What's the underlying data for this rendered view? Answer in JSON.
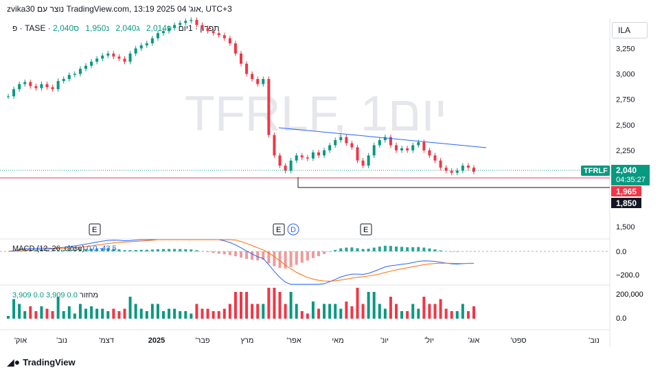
{
  "header": {
    "title_line": "zvika30 נוצר עם TradingView.com, 13:19 2025 אוג' 04, UTC+3"
  },
  "legend": {
    "symbol_line": "פ · TASE · תפרון · 1יום",
    "open": "פ2,014",
    "high": "ג2,040",
    "low": "נ1,950",
    "close": "ס2,040"
  },
  "currency": "ILA",
  "watermark": "TFRLF, 1יום",
  "price_axis": {
    "ticks": [
      "3,250",
      "3,000",
      "2,750",
      "2,500",
      "2,250",
      "1,500"
    ],
    "ticks_values": [
      3250,
      3000,
      2750,
      2500,
      2250,
      1500
    ],
    "symbol_tag": "TFRLF",
    "last_price": "2,040",
    "countdown": "04:35:27",
    "level_red": "1,965",
    "level_black": "1,850"
  },
  "macd": {
    "label": "MACD (12, 26, close)",
    "v1": "0.0",
    "v2": "-43.5",
    "axis": [
      "0.0",
      "−200.0"
    ]
  },
  "volume": {
    "label": "מחזור",
    "values_text": "0.0  3,909  0.0  3,909",
    "axis": [
      "200,000",
      "0.0"
    ]
  },
  "time_axis": {
    "labels": [
      "'אוק",
      "'נוב",
      "'דצמ",
      "2025",
      "'פבר",
      "מרץ",
      "'אפר",
      "מאי",
      "'יונ",
      "'יול",
      "'אוג",
      "'ספט",
      "'נוב"
    ]
  },
  "event_markers": [
    "E",
    "E",
    "D",
    "E"
  ],
  "footer": {
    "brand": "TradingView"
  },
  "colors": {
    "up": "#089981",
    "down": "#f23645",
    "trendline": "#2962ff",
    "macd": "#2962ff",
    "signal": "#ff6d00"
  },
  "chart_data": {
    "type": "candlestick",
    "x_range": [
      "2024-10",
      "2025-11"
    ],
    "ylim": [
      1400,
      3550
    ],
    "close_series": [
      2780,
      2850,
      2900,
      2920,
      2880,
      2860,
      2900,
      2870,
      2850,
      2930,
      2950,
      2990,
      3000,
      3050,
      3080,
      3120,
      3150,
      3180,
      3200,
      3170,
      3150,
      3120,
      3200,
      3250,
      3280,
      3300,
      3350,
      3400,
      3420,
      3450,
      3480,
      3500,
      3520,
      3530,
      3480,
      3450,
      3420,
      3400,
      3380,
      3350,
      3300,
      3200,
      3100,
      3000,
      2950,
      2900,
      2950,
      2400,
      2200,
      2100,
      2050,
      2150,
      2200,
      2180,
      2170,
      2230,
      2200,
      2250,
      2300,
      2350,
      2380,
      2320,
      2280,
      2150,
      2100,
      2200,
      2300,
      2350,
      2380,
      2300,
      2250,
      2270,
      2250,
      2300,
      2330,
      2250,
      2200,
      2150,
      2080,
      2050,
      2030,
      2050,
      2100,
      2080,
      2040
    ],
    "trendline": {
      "from": [
        "2025-04",
        2500
      ],
      "to": [
        "2025-08",
        2270
      ]
    },
    "support": 1850,
    "last": 2040,
    "red_level": 1965
  }
}
